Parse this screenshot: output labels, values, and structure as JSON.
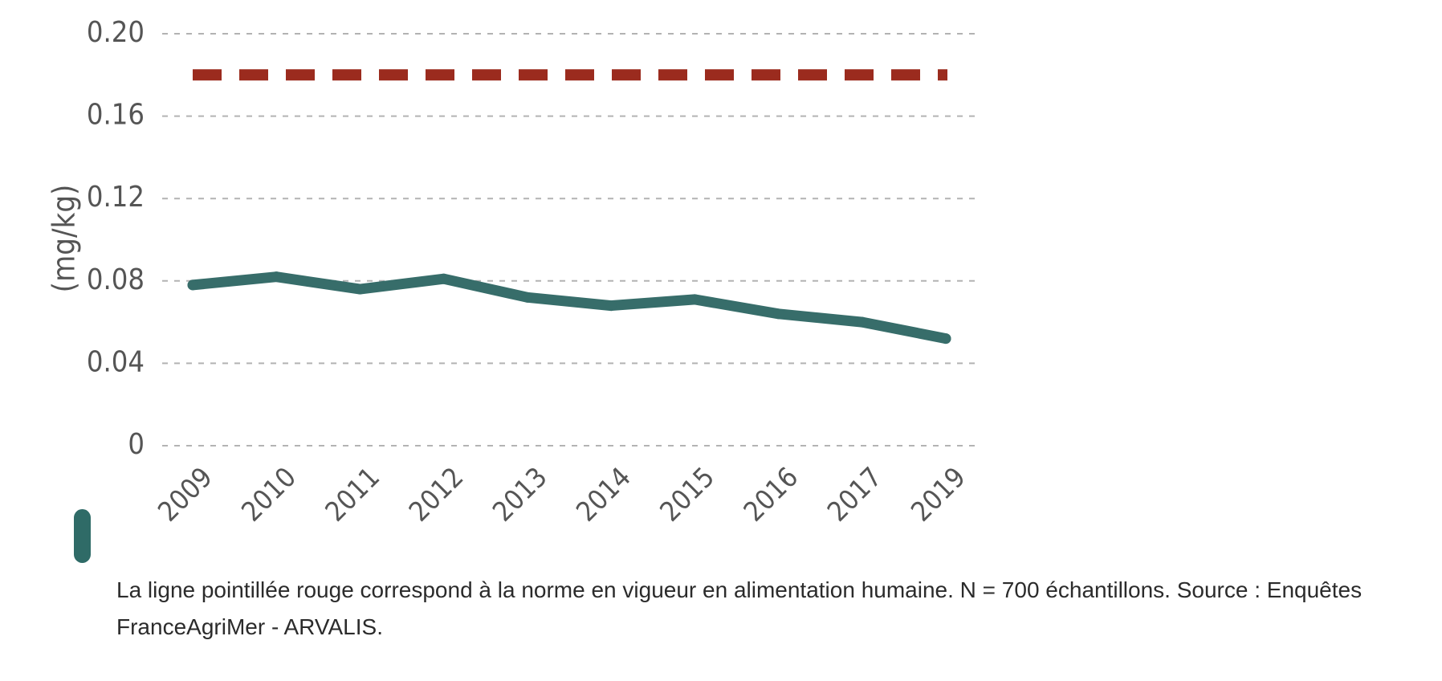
{
  "chart_data": {
    "type": "line",
    "categories": [
      "2009",
      "2010",
      "2011",
      "2012",
      "2013",
      "2014",
      "2015",
      "2016",
      "2017",
      "2019"
    ],
    "series": [
      {
        "values": [
          0.078,
          0.082,
          0.076,
          0.081,
          0.072,
          0.068,
          0.071,
          0.064,
          0.06,
          0.052
        ]
      }
    ],
    "reference_line": {
      "value": 0.18
    },
    "title": "",
    "xlabel": "",
    "ylabel": "(mg/kg)",
    "ylim": [
      0,
      0.2
    ],
    "yticks": [
      "0",
      "0.04",
      "0.08",
      "0.12",
      "0.16",
      "0.20"
    ],
    "grid": "horizontal dashed",
    "colors": {
      "series": "#376d6a",
      "reference": "#9b2b1e",
      "grid": "#b3b3b3",
      "text": "#555555"
    }
  },
  "caption": {
    "text": "La ligne pointillée rouge correspond à la norme en vigueur en alimentation humaine. N = 700 échantillons. Source : Enquêtes FranceAgriMer - ARVALIS."
  },
  "accent_color": "#2f6b67"
}
